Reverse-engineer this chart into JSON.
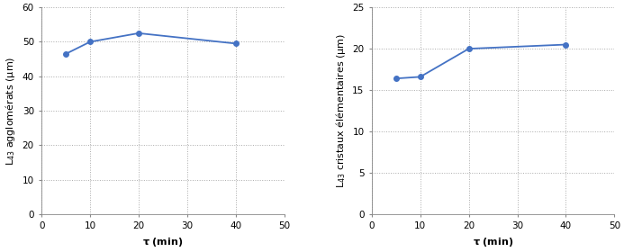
{
  "left": {
    "x": [
      5,
      10,
      20,
      40
    ],
    "y": [
      46.5,
      50.0,
      52.5,
      49.5
    ],
    "xlabel": "τ (min)",
    "ylabel": "L$_{43}$ agglomérats (μm)",
    "xlim": [
      0,
      50
    ],
    "ylim": [
      0,
      60
    ],
    "xticks": [
      0,
      10,
      20,
      30,
      40,
      50
    ],
    "yticks": [
      0,
      10,
      20,
      30,
      40,
      50,
      60
    ]
  },
  "right": {
    "x": [
      5,
      10,
      20,
      40
    ],
    "y": [
      16.4,
      16.6,
      20.0,
      20.5
    ],
    "xlabel": "τ (min)",
    "ylabel": "L$_{43}$ cristaux élémentaires (μm)",
    "xlim": [
      0,
      50
    ],
    "ylim": [
      0,
      25
    ],
    "xticks": [
      0,
      10,
      20,
      30,
      40,
      50
    ],
    "yticks": [
      0,
      5,
      10,
      15,
      20,
      25
    ]
  },
  "line_color": "#4472C4",
  "marker": "o",
  "markersize": 4,
  "linewidth": 1.3,
  "grid_color": "#aaaaaa",
  "grid_linestyle": ":",
  "grid_linewidth": 0.7,
  "label_fontsize": 8,
  "tick_fontsize": 7.5,
  "spine_color": "#888888",
  "spine_linewidth": 0.6
}
